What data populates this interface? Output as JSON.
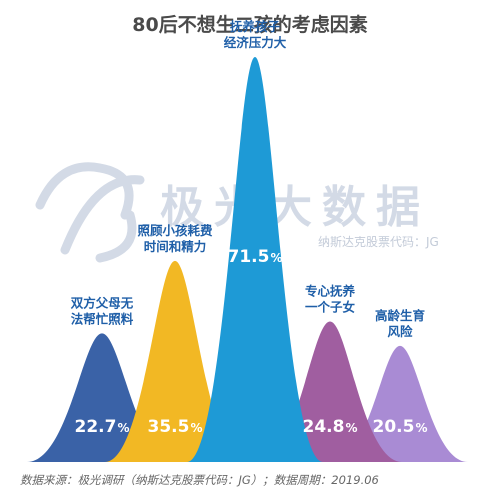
{
  "title": "80后不想生二孩的考虑因素",
  "watermark": {
    "text": "极光大数据",
    "subtext": "纳斯达克股票代码：JG"
  },
  "footer": "数据来源：极光调研（纳斯达克股票代码：JG）；数据周期：2019.06",
  "chart_data": {
    "type": "area",
    "title": "80后不想生二孩的考虑因素",
    "unit": "%",
    "categories": [
      [
        "双方父母无",
        "法帮忙照料"
      ],
      [
        "照顾小孩耗费",
        "时间和精力"
      ],
      [
        "抚养孩子",
        "经济压力大"
      ],
      [
        "专心抚养",
        "一个子女"
      ],
      [
        "高龄生育",
        "风险"
      ]
    ],
    "values": [
      22.7,
      35.5,
      71.5,
      24.8,
      20.5
    ],
    "value_labels": [
      "22.7",
      "35.5",
      "71.5",
      "24.8",
      "20.5"
    ],
    "colors": [
      "#3a62a7",
      "#f2b824",
      "#1e9ad6",
      "#a05ea0",
      "#a98bd4"
    ]
  }
}
